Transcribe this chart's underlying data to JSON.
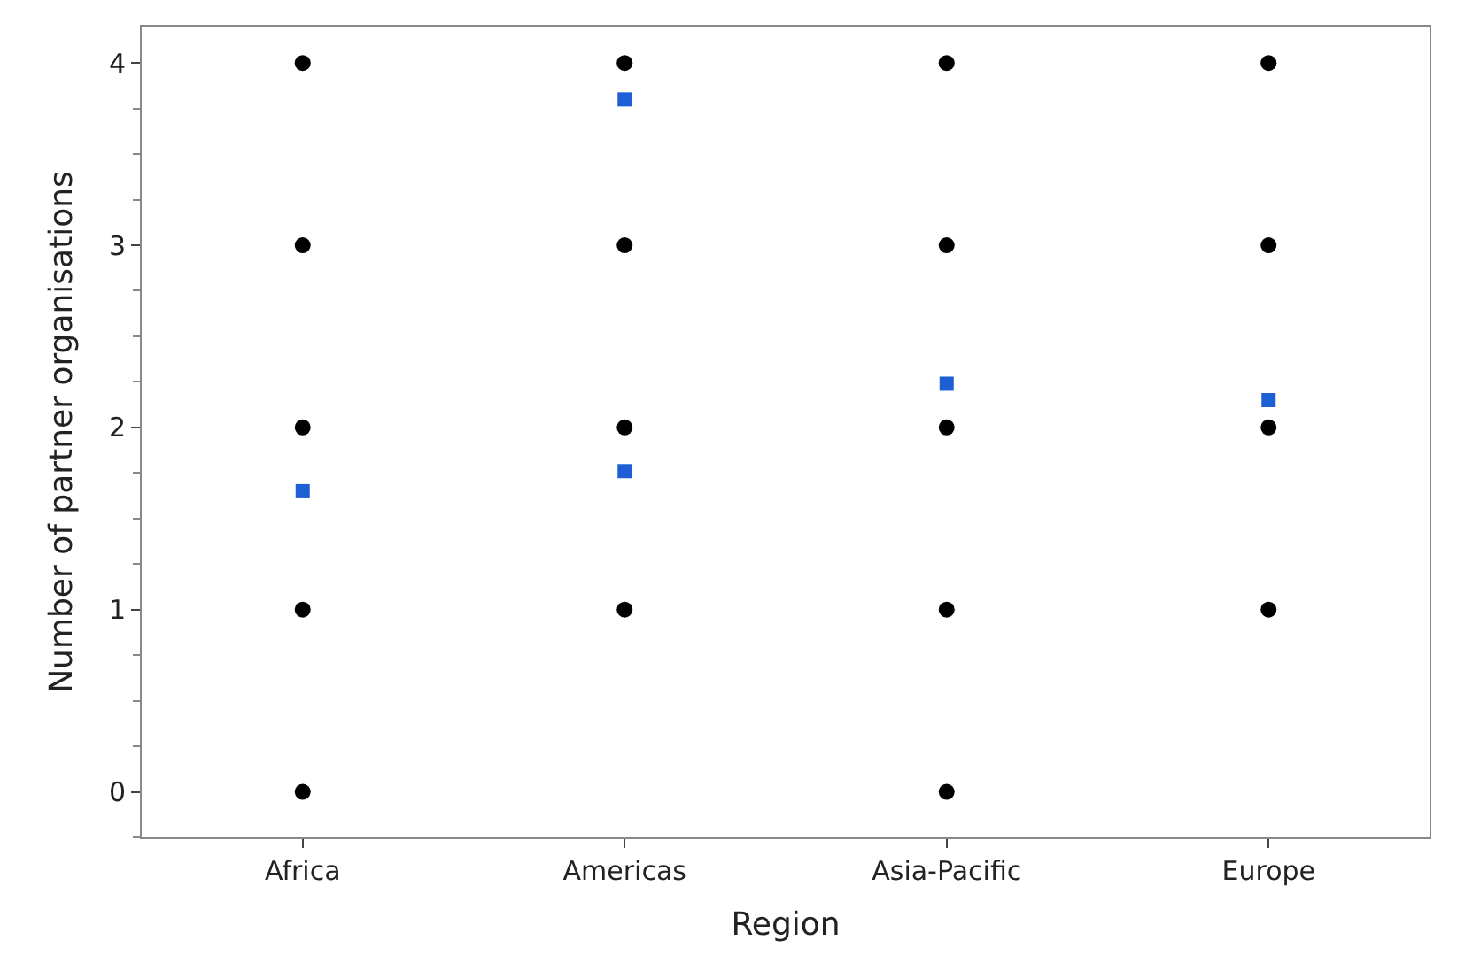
{
  "chart_data": {
    "type": "scatter",
    "xlabel": "Region",
    "ylabel": "Number of partner organisations",
    "categories": [
      "Africa",
      "Americas",
      "Asia-Pacific",
      "Europe"
    ],
    "series": [
      {
        "color": "#000000",
        "marker": "circle",
        "x": [
          "Africa",
          "Africa",
          "Africa",
          "Africa",
          "Africa",
          "Americas",
          "Americas",
          "Americas",
          "Americas",
          "Asia-Pacific",
          "Asia-Pacific",
          "Asia-Pacific",
          "Asia-Pacific",
          "Asia-Pacific",
          "Europe",
          "Europe",
          "Europe",
          "Europe"
        ],
        "values": [
          0,
          1,
          2,
          3,
          4,
          1,
          2,
          3,
          4,
          0,
          1,
          2,
          3,
          4,
          1,
          2,
          3,
          4
        ]
      },
      {
        "color": "#1f5fd6",
        "marker": "square",
        "x": [
          "Africa",
          "Americas",
          "Americas",
          "Asia-Pacific",
          "Europe"
        ],
        "values": [
          1.65,
          1.76,
          3.8,
          2.24,
          2.15
        ]
      }
    ],
    "ylim": [
      -0.25,
      4.2
    ],
    "yticks": [
      0,
      1,
      2,
      3,
      4
    ]
  }
}
